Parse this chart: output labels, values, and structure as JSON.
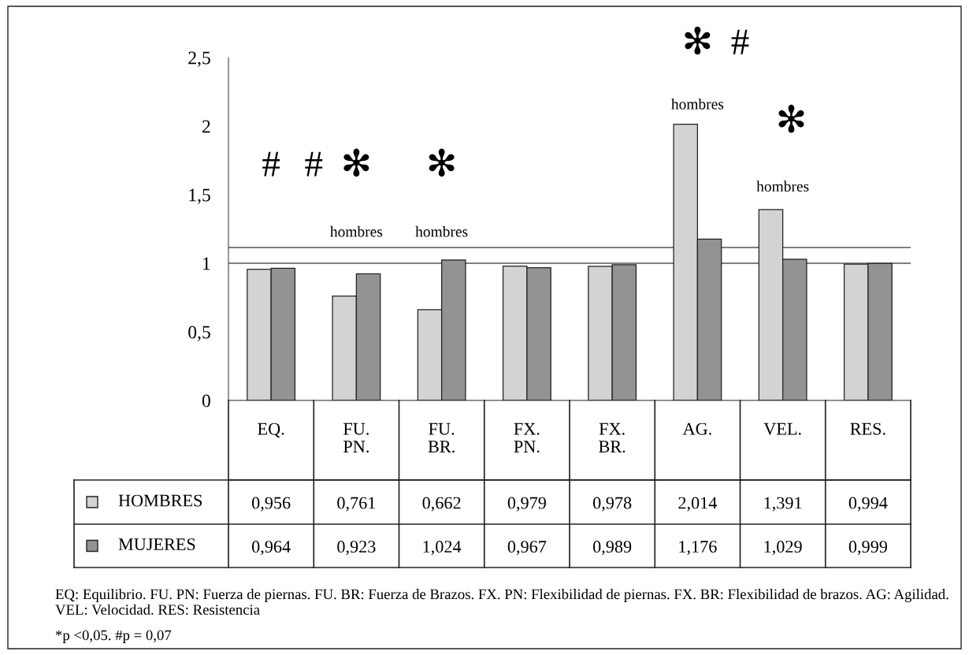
{
  "chart_data": {
    "type": "bar",
    "categories": [
      "EQ.",
      "FU.\nPN.",
      "FU.\nBR.",
      "FX.\nPN.",
      "FX.\nBR.",
      "AG.",
      "VEL.",
      "RES."
    ],
    "series": [
      {
        "name": "HOMBRES",
        "color": "#d3d3d3",
        "values": [
          0.956,
          0.761,
          0.662,
          0.979,
          0.978,
          2.014,
          1.391,
          0.994
        ],
        "value_labels": [
          "0,956",
          "0,761",
          "0,662",
          "0,979",
          "0,978",
          "2,014",
          "1,391",
          "0,994"
        ]
      },
      {
        "name": "MUJERES",
        "color": "#939393",
        "values": [
          0.964,
          0.923,
          1.024,
          0.967,
          0.989,
          1.176,
          1.029,
          0.999
        ],
        "value_labels": [
          "0,964",
          "0,923",
          "1,024",
          "0,967",
          "0,989",
          "1,176",
          "1,029",
          "0,999"
        ]
      }
    ],
    "ylim": [
      0,
      2.5
    ],
    "yticks": [
      0,
      {
        "value": 0.5,
        "label": "0,5"
      },
      1,
      {
        "value": 1.5,
        "label": "1,5"
      },
      2,
      {
        "value": 2.5,
        "label": "2,5"
      }
    ],
    "ref_lines": [
      {
        "axis": "y",
        "value": 1,
        "color": "#555555"
      },
      {
        "axis": "y",
        "value": 1.115,
        "color": "#555555"
      }
    ],
    "annotations": [
      "#",
      "#",
      "✻",
      "✻",
      "hombres",
      "hombres",
      "✻",
      "#",
      "hombres",
      "✻",
      "hombres",
      "EQ: Equilibrio. FU. PN: Fuerza de piernas. FU. BR: Fuerza de Brazos. FX. PN: Flexibilidad de piernas. FX. BR: Flexibilidad de brazos. AG: Agilidad. VEL: Velocidad. RES: Resistencia",
      "*p <0,05. #p = 0,07"
    ],
    "legend": "left",
    "grid": false
  }
}
